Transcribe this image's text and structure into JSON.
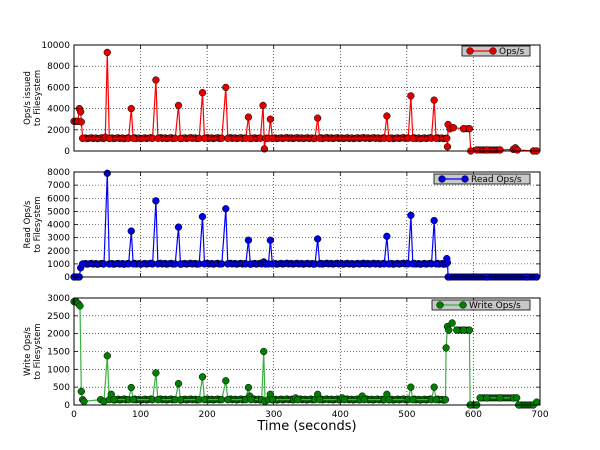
{
  "figure": {
    "xlabel": "Time (seconds)"
  },
  "chart_data": [
    {
      "type": "line",
      "title": "",
      "xlabel": "Time (seconds)",
      "ylabel": "Ops/s issued\nto Filesystem",
      "ylabel_lines": [
        "Ops/s issued",
        "to Filesystem"
      ],
      "legend": "Ops/s",
      "legend_position": "upper right",
      "color": "#ff0000",
      "marker_color": "#e00000",
      "xlim": [
        0,
        700
      ],
      "ylim": [
        0,
        10000
      ],
      "xticks": [
        0,
        100,
        200,
        300,
        400,
        500,
        600,
        700
      ],
      "yticks": [
        0,
        2000,
        4000,
        6000,
        8000,
        10000
      ],
      "grid": true,
      "baseline": 1200,
      "points": [
        [
          0,
          2800
        ],
        [
          3,
          2800
        ],
        [
          6,
          2800
        ],
        [
          8,
          4000
        ],
        [
          10,
          3700
        ],
        [
          11,
          2750
        ],
        [
          13,
          1200
        ],
        [
          45,
          1200
        ],
        [
          47,
          1300
        ],
        [
          50,
          9300
        ],
        [
          53,
          1200
        ],
        [
          82,
          1200
        ],
        [
          86,
          4000
        ],
        [
          89,
          1200
        ],
        [
          118,
          1200
        ],
        [
          123,
          6700
        ],
        [
          126,
          1200
        ],
        [
          152,
          1200
        ],
        [
          157,
          4300
        ],
        [
          160,
          1200
        ],
        [
          188,
          1200
        ],
        [
          193,
          5500
        ],
        [
          196,
          1200
        ],
        [
          222,
          1200
        ],
        [
          228,
          6000
        ],
        [
          231,
          1200
        ],
        [
          258,
          1200
        ],
        [
          262,
          3200
        ],
        [
          265,
          1200
        ],
        [
          280,
          1200
        ],
        [
          284,
          4300
        ],
        [
          286,
          200
        ],
        [
          288,
          1200
        ],
        [
          292,
          1200
        ],
        [
          295,
          3000
        ],
        [
          298,
          1200
        ],
        [
          362,
          1200
        ],
        [
          366,
          3100
        ],
        [
          369,
          1200
        ],
        [
          466,
          1200
        ],
        [
          470,
          3300
        ],
        [
          473,
          1200
        ],
        [
          502,
          1200
        ],
        [
          506,
          5200
        ],
        [
          509,
          1200
        ],
        [
          537,
          1200
        ],
        [
          541,
          4800
        ],
        [
          544,
          1200
        ],
        [
          560,
          1200
        ],
        [
          561,
          400
        ],
        [
          562,
          2500
        ],
        [
          565,
          2100
        ],
        [
          570,
          2200
        ],
        [
          585,
          2100
        ],
        [
          594,
          2100
        ],
        [
          596,
          0
        ],
        [
          605,
          100
        ],
        [
          620,
          100
        ],
        [
          640,
          100
        ],
        [
          660,
          150
        ],
        [
          663,
          300
        ],
        [
          666,
          100
        ],
        [
          690,
          0
        ],
        [
          695,
          0
        ]
      ]
    },
    {
      "type": "line",
      "title": "",
      "xlabel": "Time (seconds)",
      "ylabel": "Read Ops/s\nto Filesystem",
      "ylabel_lines": [
        "Read Ops/s",
        "to Filesystem"
      ],
      "legend": "Read Ops/s",
      "legend_position": "upper right",
      "color": "#0000ff",
      "marker_color": "#0000e0",
      "xlim": [
        0,
        700
      ],
      "ylim": [
        0,
        8000
      ],
      "xticks": [
        0,
        100,
        200,
        300,
        400,
        500,
        600,
        700
      ],
      "yticks": [
        0,
        1000,
        2000,
        3000,
        4000,
        5000,
        6000,
        7000,
        8000
      ],
      "grid": true,
      "baseline": 1000,
      "points": [
        [
          0,
          0
        ],
        [
          5,
          0
        ],
        [
          8,
          0
        ],
        [
          10,
          700
        ],
        [
          13,
          1000
        ],
        [
          45,
          1000
        ],
        [
          50,
          7900
        ],
        [
          53,
          1000
        ],
        [
          82,
          1000
        ],
        [
          86,
          3500
        ],
        [
          89,
          1000
        ],
        [
          118,
          1000
        ],
        [
          123,
          5800
        ],
        [
          126,
          1000
        ],
        [
          152,
          1000
        ],
        [
          157,
          3800
        ],
        [
          160,
          1000
        ],
        [
          188,
          1000
        ],
        [
          193,
          4600
        ],
        [
          196,
          1000
        ],
        [
          222,
          1000
        ],
        [
          228,
          5200
        ],
        [
          231,
          1000
        ],
        [
          258,
          1000
        ],
        [
          262,
          2800
        ],
        [
          265,
          1000
        ],
        [
          282,
          1000
        ],
        [
          285,
          1150
        ],
        [
          288,
          1000
        ],
        [
          292,
          1000
        ],
        [
          295,
          2800
        ],
        [
          298,
          1000
        ],
        [
          362,
          1000
        ],
        [
          366,
          2900
        ],
        [
          369,
          1000
        ],
        [
          466,
          1000
        ],
        [
          470,
          3100
        ],
        [
          473,
          1000
        ],
        [
          502,
          1000
        ],
        [
          506,
          4700
        ],
        [
          509,
          1000
        ],
        [
          537,
          1000
        ],
        [
          541,
          4300
        ],
        [
          544,
          1000
        ],
        [
          559,
          1000
        ],
        [
          560,
          1400
        ],
        [
          561,
          1100
        ],
        [
          562,
          0
        ],
        [
          620,
          0
        ],
        [
          680,
          0
        ],
        [
          695,
          0
        ]
      ]
    },
    {
      "type": "line",
      "title": "",
      "xlabel": "Time (seconds)",
      "ylabel": "Write Ops/s\nto Filesystem",
      "ylabel_lines": [
        "Write Ops/s",
        "to Filesystem"
      ],
      "legend": "Write Ops/s",
      "legend_position": "upper right",
      "color": "#3cb043",
      "marker_color": "#008000",
      "xlim": [
        0,
        700
      ],
      "ylim": [
        0,
        3000
      ],
      "xticks": [
        0,
        100,
        200,
        300,
        400,
        500,
        600,
        700
      ],
      "yticks": [
        0,
        500,
        1000,
        1500,
        2000,
        2500,
        3000
      ],
      "grid": true,
      "baseline": 150,
      "points": [
        [
          0,
          2900
        ],
        [
          3,
          2900
        ],
        [
          6,
          2850
        ],
        [
          9,
          2780
        ],
        [
          11,
          380
        ],
        [
          13,
          150
        ],
        [
          15,
          100
        ],
        [
          40,
          150
        ],
        [
          45,
          100
        ],
        [
          50,
          1380
        ],
        [
          53,
          150
        ],
        [
          56,
          300
        ],
        [
          60,
          150
        ],
        [
          82,
          150
        ],
        [
          86,
          490
        ],
        [
          89,
          150
        ],
        [
          118,
          150
        ],
        [
          123,
          900
        ],
        [
          126,
          150
        ],
        [
          152,
          150
        ],
        [
          157,
          600
        ],
        [
          160,
          150
        ],
        [
          188,
          150
        ],
        [
          193,
          790
        ],
        [
          196,
          150
        ],
        [
          222,
          150
        ],
        [
          228,
          680
        ],
        [
          231,
          150
        ],
        [
          258,
          150
        ],
        [
          262,
          490
        ],
        [
          264,
          250
        ],
        [
          266,
          150
        ],
        [
          282,
          150
        ],
        [
          285,
          1500
        ],
        [
          287,
          100
        ],
        [
          292,
          150
        ],
        [
          295,
          300
        ],
        [
          298,
          150
        ],
        [
          330,
          150
        ],
        [
          333,
          200
        ],
        [
          336,
          150
        ],
        [
          362,
          150
        ],
        [
          366,
          300
        ],
        [
          369,
          150
        ],
        [
          400,
          150
        ],
        [
          403,
          200
        ],
        [
          406,
          150
        ],
        [
          430,
          150
        ],
        [
          433,
          250
        ],
        [
          436,
          150
        ],
        [
          466,
          150
        ],
        [
          470,
          300
        ],
        [
          473,
          150
        ],
        [
          502,
          150
        ],
        [
          506,
          500
        ],
        [
          509,
          150
        ],
        [
          537,
          150
        ],
        [
          541,
          500
        ],
        [
          544,
          150
        ],
        [
          558,
          150
        ],
        [
          559,
          1600
        ],
        [
          561,
          2200
        ],
        [
          563,
          2100
        ],
        [
          568,
          2300
        ],
        [
          575,
          2100
        ],
        [
          585,
          2100
        ],
        [
          594,
          2100
        ],
        [
          595,
          0
        ],
        [
          605,
          0
        ],
        [
          610,
          200
        ],
        [
          620,
          200
        ],
        [
          640,
          200
        ],
        [
          660,
          200
        ],
        [
          665,
          200
        ],
        [
          668,
          0
        ],
        [
          690,
          0
        ],
        [
          695,
          80
        ]
      ]
    }
  ]
}
